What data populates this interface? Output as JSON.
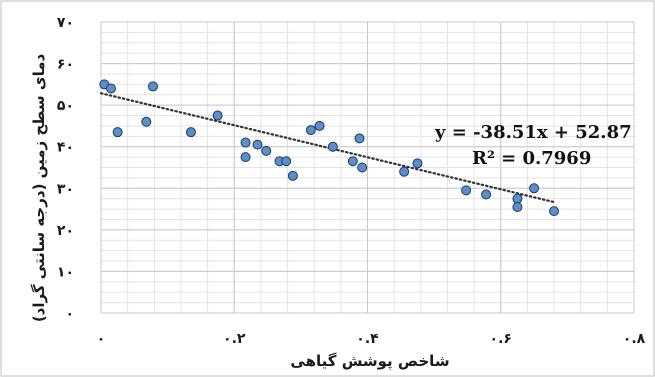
{
  "chart_data": {
    "type": "scatter",
    "title": "",
    "xlabel": "شاخص پوشش گیاهی",
    "ylabel": "دمای سطح زمین (درجه سانتی گراد)",
    "xlim": [
      0,
      0.8
    ],
    "ylim": [
      0,
      70
    ],
    "x_ticks": [
      0,
      0.2,
      0.4,
      0.6,
      0.8
    ],
    "x_tick_labels": [
      "۰",
      "۰.۲",
      "۰.۴",
      "۰.۶",
      "۰.۸"
    ],
    "y_ticks": [
      0,
      10,
      20,
      30,
      40,
      50,
      60,
      70
    ],
    "y_tick_labels": [
      "۰",
      "۱۰",
      "۲۰",
      "۳۰",
      "۴۰",
      "۵۰",
      "۶۰",
      "۷۰"
    ],
    "grid": true,
    "marker_color": "#5b8fc9",
    "marker_edge_color": "#1f3864",
    "trendline_color": "#333333",
    "points": [
      {
        "x": 0.005,
        "y": 55.0
      },
      {
        "x": 0.015,
        "y": 54.0
      },
      {
        "x": 0.025,
        "y": 43.5
      },
      {
        "x": 0.068,
        "y": 46.0
      },
      {
        "x": 0.078,
        "y": 54.5
      },
      {
        "x": 0.135,
        "y": 43.5
      },
      {
        "x": 0.175,
        "y": 47.5
      },
      {
        "x": 0.217,
        "y": 41.0
      },
      {
        "x": 0.217,
        "y": 37.5
      },
      {
        "x": 0.235,
        "y": 40.5
      },
      {
        "x": 0.248,
        "y": 39.0
      },
      {
        "x": 0.268,
        "y": 36.5
      },
      {
        "x": 0.278,
        "y": 36.5
      },
      {
        "x": 0.288,
        "y": 33.0
      },
      {
        "x": 0.315,
        "y": 44.0
      },
      {
        "x": 0.328,
        "y": 45.0
      },
      {
        "x": 0.348,
        "y": 40.0
      },
      {
        "x": 0.378,
        "y": 36.5
      },
      {
        "x": 0.388,
        "y": 42.0
      },
      {
        "x": 0.392,
        "y": 35.0
      },
      {
        "x": 0.455,
        "y": 34.0
      },
      {
        "x": 0.475,
        "y": 36.0
      },
      {
        "x": 0.548,
        "y": 29.5
      },
      {
        "x": 0.578,
        "y": 28.5
      },
      {
        "x": 0.625,
        "y": 27.5
      },
      {
        "x": 0.625,
        "y": 25.5
      },
      {
        "x": 0.65,
        "y": 30.0
      },
      {
        "x": 0.68,
        "y": 24.5
      }
    ],
    "trendline": {
      "slope": -38.51,
      "intercept": 52.87,
      "x_range": [
        0,
        0.68
      ]
    },
    "annotations": {
      "equation": "y = -38.51x + 52.87",
      "r_squared": "R² = 0.7969"
    }
  }
}
